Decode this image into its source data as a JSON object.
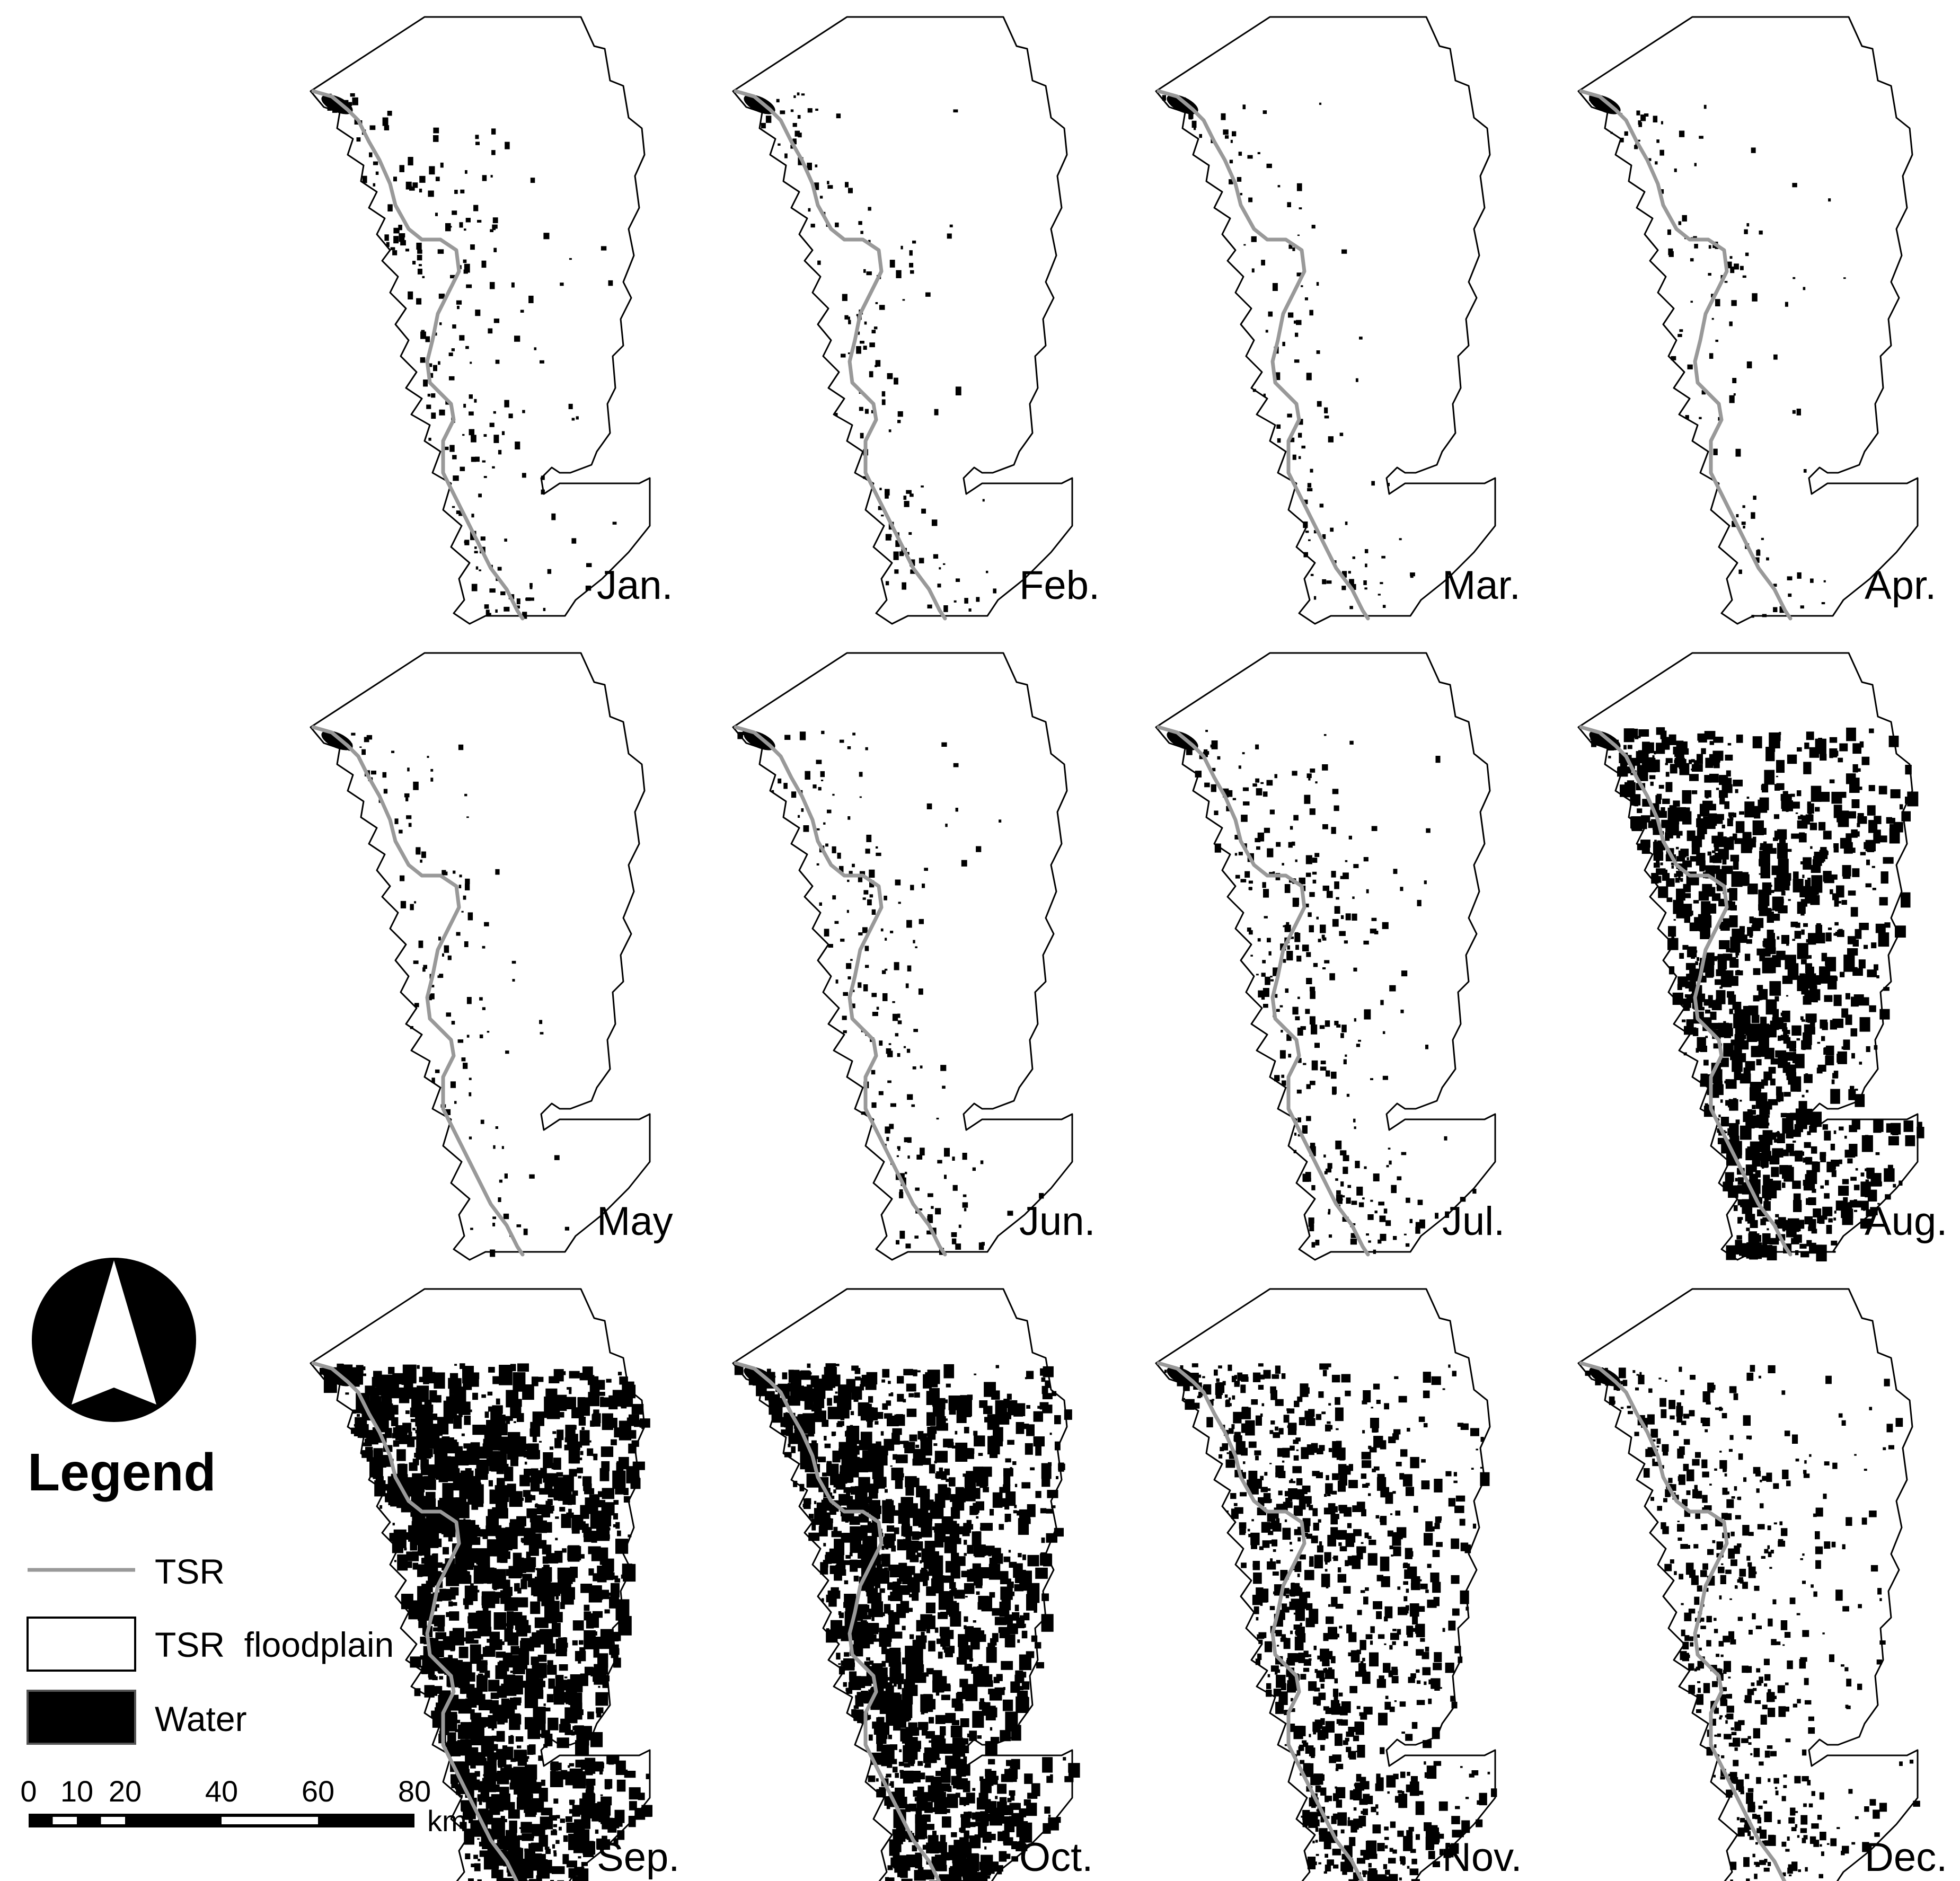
{
  "months": [
    {
      "label": "Jan.",
      "flood_level": 0.06
    },
    {
      "label": "Feb.",
      "flood_level": 0.03
    },
    {
      "label": "Mar.",
      "flood_level": 0.02
    },
    {
      "label": "Apr.",
      "flood_level": 0.02
    },
    {
      "label": "May",
      "flood_level": 0.02
    },
    {
      "label": "Jun.",
      "flood_level": 0.05
    },
    {
      "label": "Jul.",
      "flood_level": 0.1
    },
    {
      "label": "Aug.",
      "flood_level": 0.45
    },
    {
      "label": "Sep.",
      "flood_level": 0.62
    },
    {
      "label": "Oct.",
      "flood_level": 0.55
    },
    {
      "label": "Nov.",
      "flood_level": 0.33
    },
    {
      "label": "Dec.",
      "flood_level": 0.18
    }
  ],
  "legend": {
    "title": "Legend",
    "items": [
      {
        "label": "TSR",
        "symbol": "line",
        "color": "#999999"
      },
      {
        "label": "TSR  floodplain",
        "symbol": "outline-box",
        "color": "#ffffff"
      },
      {
        "label": "Water",
        "symbol": "filled-box",
        "color": "#000000"
      }
    ]
  },
  "north_arrow": {
    "icon": "north-arrow-icon"
  },
  "scale_bar": {
    "ticks": [
      "0",
      "10",
      "20",
      "40",
      "60",
      "80"
    ],
    "tick_values_km": [
      0,
      10,
      20,
      40,
      60,
      80
    ],
    "unit": "km"
  },
  "colors": {
    "water": "#000000",
    "river": "#999999",
    "floodplain": "#ffffff",
    "outline": "#000000"
  }
}
